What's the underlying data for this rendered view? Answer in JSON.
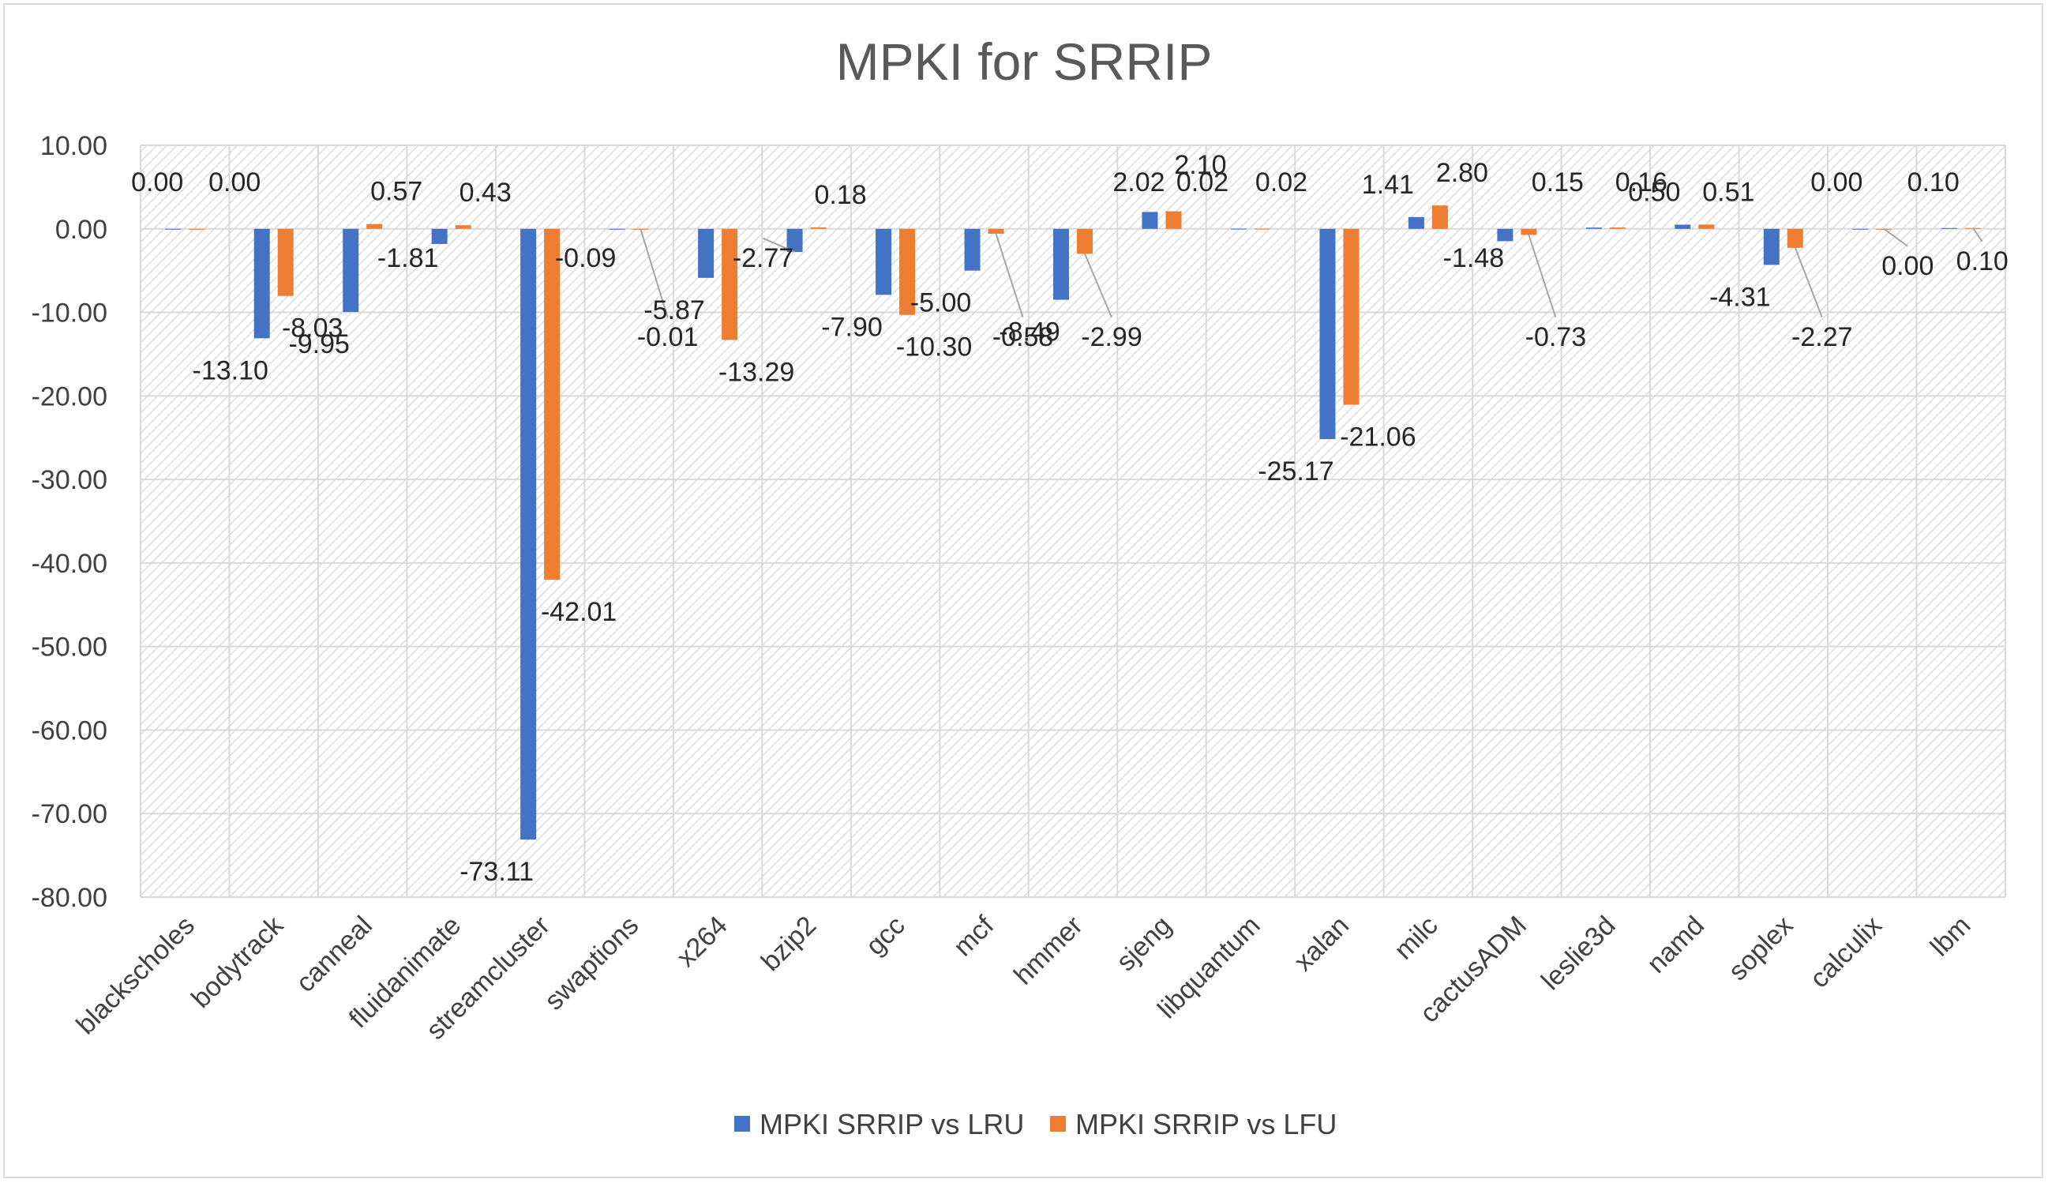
{
  "chart_data": {
    "type": "bar",
    "title": "MPKI for SRRIP",
    "xlabel": "",
    "ylabel": "",
    "ylim": [
      -80,
      10
    ],
    "y_ticks": [
      "10.00",
      "0.00",
      "-10.00",
      "-20.00",
      "-30.00",
      "-40.00",
      "-50.00",
      "-60.00",
      "-70.00",
      "-80.00"
    ],
    "grid": true,
    "legend_position": "bottom",
    "categories": [
      "blackscholes",
      "bodytrack",
      "canneal",
      "fluidanimate",
      "streamcluster",
      "swaptions",
      "x264",
      "bzip2",
      "gcc",
      "mcf",
      "hmmer",
      "sjeng",
      "libquantum",
      "xalan",
      "milc",
      "cactusADM",
      "leslie3d",
      "namd",
      "soplex",
      "calculix",
      "lbm"
    ],
    "series": [
      {
        "name": "MPKI SRRIP vs LRU",
        "color": "#4472c4",
        "values": [
          0.0,
          -13.1,
          -9.95,
          -1.81,
          -73.11,
          -0.09,
          -5.87,
          -2.77,
          -7.9,
          -5.0,
          -8.49,
          2.02,
          0.02,
          -25.17,
          1.41,
          -1.48,
          0.15,
          0.5,
          -4.31,
          0.0,
          0.1
        ],
        "labels": [
          "0.00",
          "-13.10",
          "-9.95",
          "-1.81",
          "-73.11",
          "-0.09",
          "-5.87",
          "-2.77",
          "-7.90",
          "-5.00",
          "-8.49",
          "2.02",
          "0.02",
          "-25.17",
          "1.41",
          "-1.48",
          "0.15",
          "0.50",
          "-4.31",
          "0.00",
          "0.10"
        ]
      },
      {
        "name": "MPKI SRRIP vs LFU",
        "color": "#ed7d31",
        "values": [
          0.0,
          -8.03,
          0.57,
          0.43,
          -42.01,
          -0.01,
          -13.29,
          0.18,
          -10.3,
          -0.58,
          -2.99,
          2.1,
          0.02,
          -21.06,
          2.8,
          -0.73,
          0.16,
          0.51,
          -2.27,
          0.0,
          0.1
        ],
        "labels": [
          "0.00",
          "-8.03",
          "0.57",
          "0.43",
          "-42.01",
          "-0.01",
          "-13.29",
          "0.18",
          "-10.30",
          "-0.58",
          "-2.99",
          "2.10",
          "0.02",
          "-21.06",
          "2.80",
          "-0.73",
          "0.16",
          "0.51",
          "-2.27",
          "0.00",
          "0.10"
        ]
      }
    ]
  }
}
